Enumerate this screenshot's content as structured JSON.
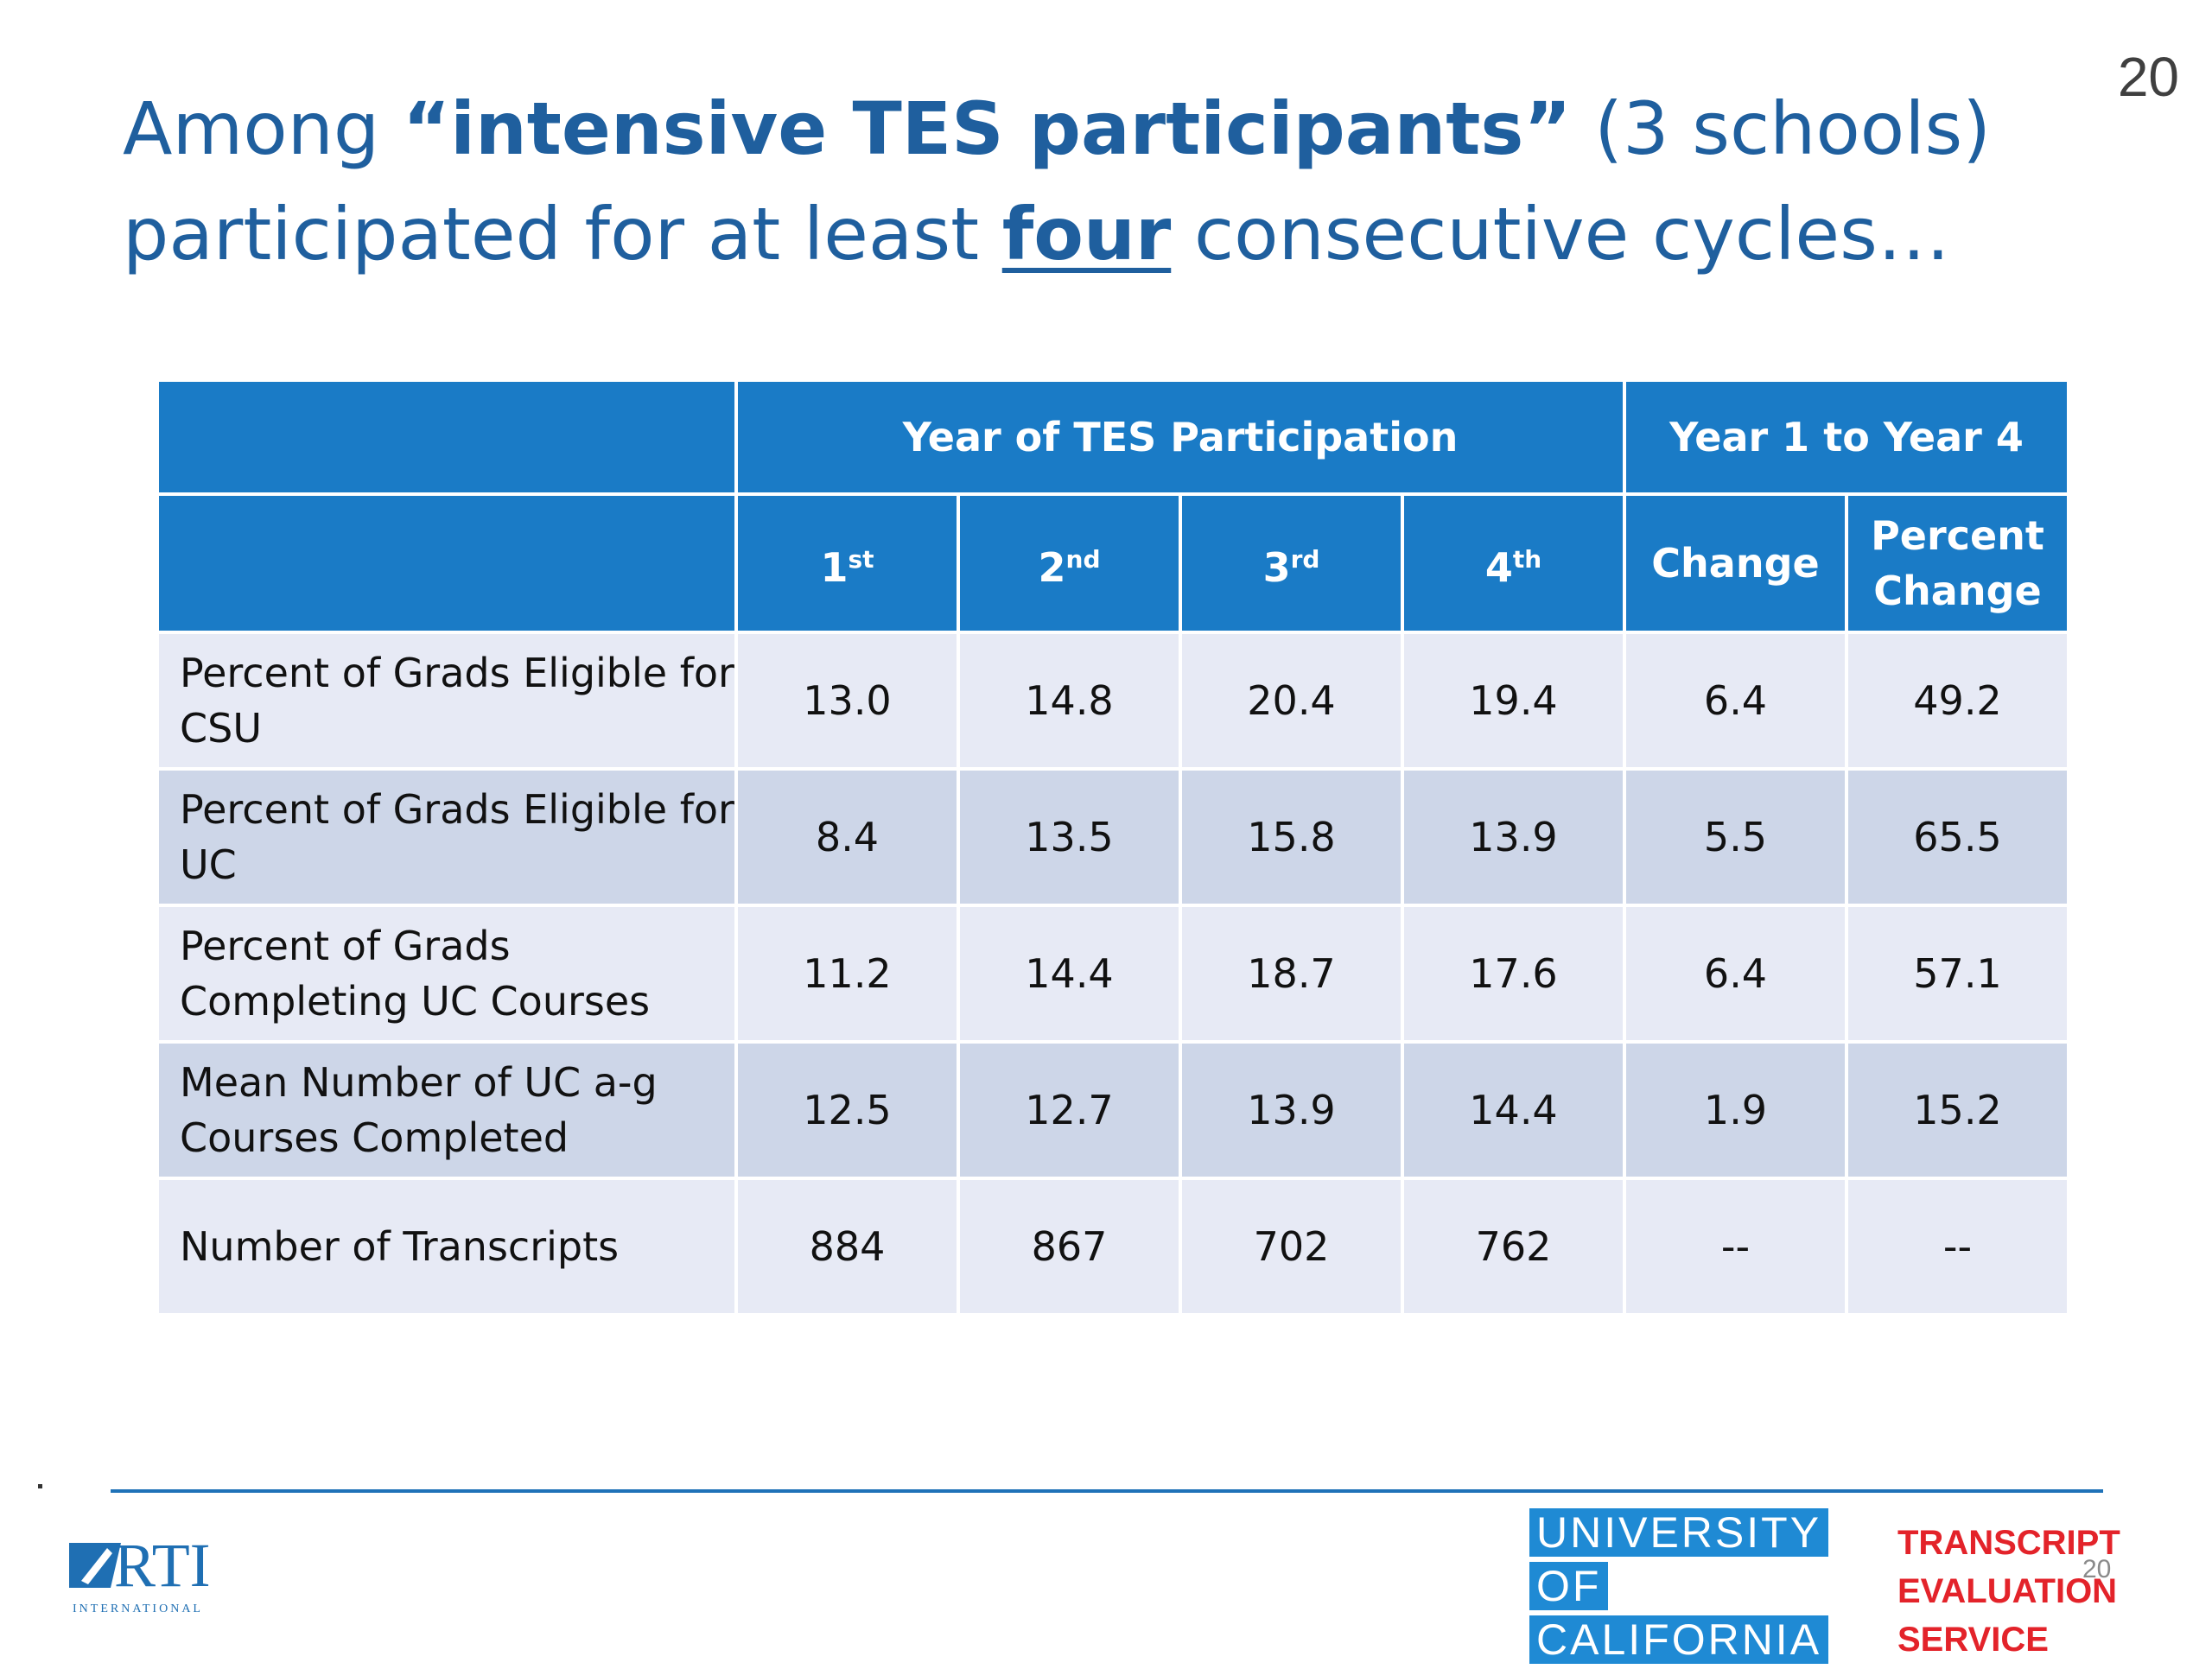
{
  "page_number": "20",
  "title": {
    "part1": "Among ",
    "part2_bold": "“intensive TES participants”",
    "part3": " (3 schools)",
    "part4": "participated for at least ",
    "part5_underline": "four",
    "part6": " consecutive cycles…"
  },
  "table": {
    "group_headers": {
      "year_of_tes": "Year of TES Participation",
      "year1_to_4": "Year 1 to Year 4"
    },
    "col_headers": [
      {
        "num": "1",
        "sup": "st"
      },
      {
        "num": "2",
        "sup": "nd"
      },
      {
        "num": "3",
        "sup": "rd"
      },
      {
        "num": "4",
        "sup": "th"
      }
    ],
    "change_header": "Change",
    "pct_change_header_line1": "Percent",
    "pct_change_header_line2": "Change",
    "rows": [
      {
        "label_line1": "Percent of Grads Eligible for",
        "label_line2": "CSU",
        "v": [
          "13.0",
          "14.8",
          "20.4",
          "19.4",
          "6.4",
          "49.2"
        ]
      },
      {
        "label_line1": "Percent of Grads Eligible for",
        "label_line2": "UC",
        "v": [
          "8.4",
          "13.5",
          "15.8",
          "13.9",
          "5.5",
          "65.5"
        ]
      },
      {
        "label_line1": "Percent of Grads",
        "label_line2": "Completing UC Courses",
        "v": [
          "11.2",
          "14.4",
          "18.7",
          "17.6",
          "6.4",
          "57.1"
        ]
      },
      {
        "label_line1": "Mean Number of UC a-g",
        "label_line2": "Courses Completed",
        "v": [
          "12.5",
          "12.7",
          "13.9",
          "14.4",
          "1.9",
          "15.2"
        ]
      },
      {
        "label_line1": "Number of Transcripts",
        "label_line2": "",
        "v": [
          "884",
          "867",
          "702",
          "762",
          "--",
          "--"
        ]
      }
    ]
  },
  "footer": {
    "rti_logo_text": "RTI",
    "rti_sub": "INTERNATIONAL",
    "uc_line1": "UNIVERSITY",
    "uc_line2": "OF",
    "uc_line3": "CALIFORNIA",
    "tes_line1": "TRANSCRIPT",
    "tes_line2": "EVALUATION",
    "tes_line3": "SERVICE",
    "small_page_number": "20"
  },
  "colors": {
    "title": "#1f5f9e",
    "header_bg": "#1a7bc6",
    "row_light": "#e7eaf5",
    "row_dark": "#cdd6e8",
    "tes_red": "#e3232a",
    "uc_blue": "#1f8ad4"
  }
}
